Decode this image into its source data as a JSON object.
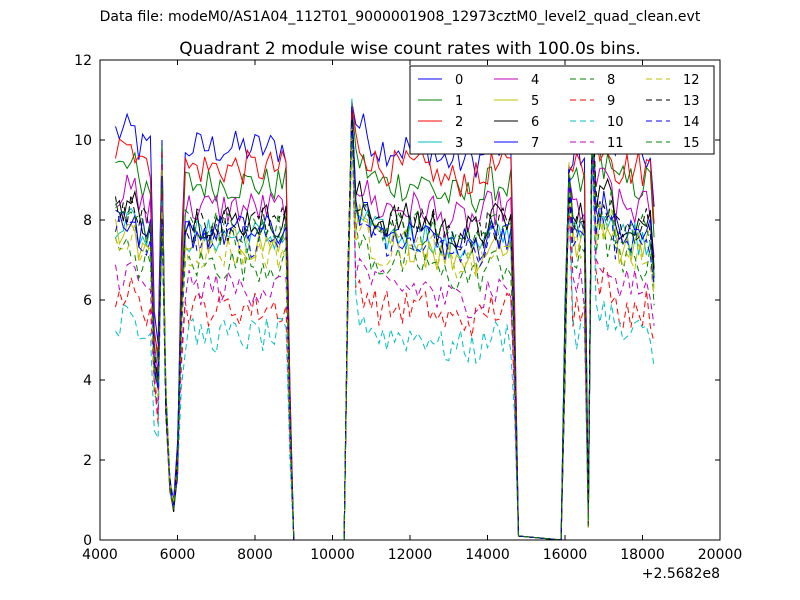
{
  "figure": {
    "suptitle": "Data file: modeM0/AS1A04_112T01_9000001908_12973cztM0_level2_quad_clean.evt"
  },
  "chart_data": {
    "type": "line",
    "title": "Quadrant 2 module wise count rates with 100.0s bins.",
    "xlabel": "",
    "ylabel": "",
    "x_offset_label": "+2.5682e8",
    "xlim": [
      4000,
      20000
    ],
    "ylim": [
      0,
      12
    ],
    "xticks": [
      4000,
      6000,
      8000,
      10000,
      12000,
      14000,
      16000,
      18000,
      20000
    ],
    "yticks": [
      0,
      2,
      4,
      6,
      8,
      10,
      12
    ],
    "grid": false,
    "legend_position": "top-right",
    "legend_columns": 4,
    "segments": [
      {
        "x_start": 4400,
        "x_end": 8900,
        "dips": [
          [
            5500,
            5650,
            "down"
          ],
          [
            5650,
            5800,
            "up"
          ],
          [
            5800,
            6000,
            "down"
          ]
        ]
      },
      {
        "x_start": 10400,
        "x_end": 14800
      },
      {
        "x_start": 16000,
        "x_end": 18300,
        "dips": [
          [
            16550,
            16650,
            "down"
          ]
        ]
      }
    ],
    "gap_ranges": [
      [
        9000,
        10300
      ],
      [
        14800,
        15900
      ]
    ],
    "series": [
      {
        "name": "0",
        "color": "#0000ff",
        "dash": "solid",
        "level": 9.8
      },
      {
        "name": "1",
        "color": "#008000",
        "dash": "solid",
        "level": 8.9
      },
      {
        "name": "2",
        "color": "#ff0000",
        "dash": "solid",
        "level": 9.3
      },
      {
        "name": "3",
        "color": "#00bfbf",
        "dash": "solid",
        "level": 7.6
      },
      {
        "name": "4",
        "color": "#bf00bf",
        "dash": "solid",
        "level": 8.3
      },
      {
        "name": "5",
        "color": "#bfbf00",
        "dash": "solid",
        "level": 7.4
      },
      {
        "name": "6",
        "color": "#000000",
        "dash": "solid",
        "level": 8.0
      },
      {
        "name": "7",
        "color": "#0000ff",
        "dash": "solid",
        "level": 7.7
      },
      {
        "name": "8",
        "color": "#008000",
        "dash": "dashed",
        "level": 6.9
      },
      {
        "name": "9",
        "color": "#ff0000",
        "dash": "dashed",
        "level": 5.8
      },
      {
        "name": "10",
        "color": "#00bfbf",
        "dash": "dashed",
        "level": 5.1
      },
      {
        "name": "11",
        "color": "#bf00bf",
        "dash": "dashed",
        "level": 6.3
      },
      {
        "name": "12",
        "color": "#bfbf00",
        "dash": "dashed",
        "level": 7.2
      },
      {
        "name": "13",
        "color": "#000000",
        "dash": "dashed",
        "level": 7.9
      },
      {
        "name": "14",
        "color": "#0000ff",
        "dash": "dashed",
        "level": 7.5
      },
      {
        "name": "15",
        "color": "#008000",
        "dash": "dashed",
        "level": 7.8
      }
    ]
  }
}
